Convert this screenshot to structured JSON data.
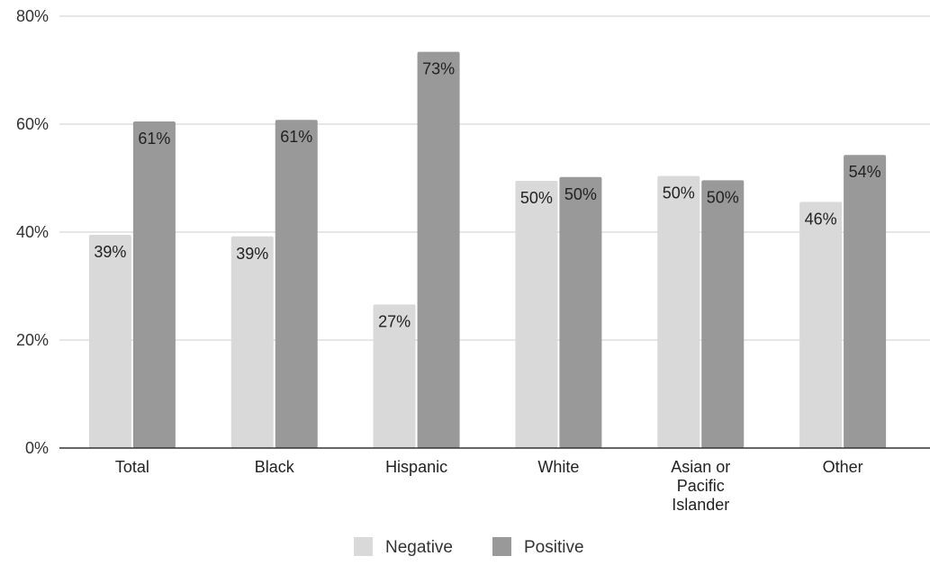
{
  "chart_data": {
    "type": "bar",
    "categories": [
      [
        "Total"
      ],
      [
        "Black"
      ],
      [
        "Hispanic"
      ],
      [
        "White"
      ],
      [
        "Asian or",
        "Pacific",
        "Islander"
      ],
      [
        "Other"
      ]
    ],
    "series": [
      {
        "name": "Negative",
        "color": "#d9d9d9",
        "values": [
          39.5,
          39.2,
          26.6,
          49.5,
          50.4,
          45.6
        ],
        "labels": [
          "39%",
          "39%",
          "27%",
          "50%",
          "50%",
          "46%"
        ]
      },
      {
        "name": "Positive",
        "color": "#999999",
        "values": [
          60.5,
          60.8,
          73.4,
          50.2,
          49.6,
          54.3
        ],
        "labels": [
          "61%",
          "61%",
          "73%",
          "50%",
          "50%",
          "54%"
        ]
      }
    ],
    "y_ticks": [
      "0%",
      "20%",
      "40%",
      "60%",
      "80%"
    ],
    "ylim": [
      0,
      80
    ],
    "grid": true,
    "legend": "bottom-center",
    "title": "",
    "xlabel": "",
    "ylabel": ""
  }
}
